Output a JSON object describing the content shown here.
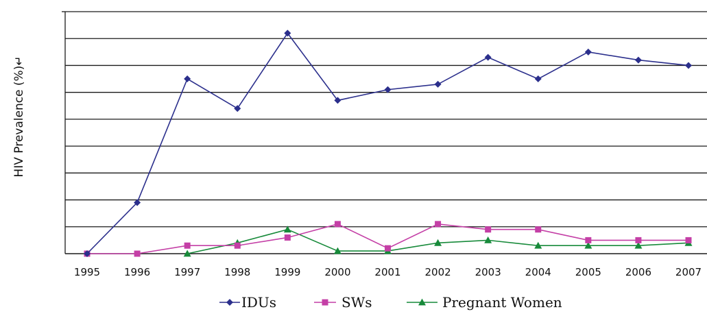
{
  "chart_data": {
    "type": "line",
    "title": "",
    "xlabel": "",
    "ylabel": "HIV Prevalence (%)↵",
    "x": [
      "1995",
      "1996",
      "1997",
      "1998",
      "1999",
      "2000",
      "2001",
      "2002",
      "2003",
      "2004",
      "2005",
      "2006",
      "2007"
    ],
    "ylim": [
      0,
      90
    ],
    "y_tick_labels_shown": false,
    "grid": true,
    "legend_position": "bottom",
    "series": [
      {
        "name": "IDUs",
        "color": "#2B2F8C",
        "marker": "diamond",
        "values": [
          0,
          19,
          65,
          54,
          82,
          57,
          61,
          63,
          73,
          65,
          75,
          72,
          70
        ]
      },
      {
        "name": "SWs",
        "color": "#C43FA6",
        "marker": "square",
        "values": [
          0,
          0,
          3,
          3,
          6,
          11,
          2,
          11,
          9,
          9,
          5,
          5,
          5
        ]
      },
      {
        "name": "Pregnant Women",
        "color": "#178A3A",
        "marker": "triangle",
        "values": [
          null,
          null,
          0,
          4,
          9,
          1,
          1,
          4,
          5,
          3,
          3,
          3,
          4
        ]
      }
    ]
  }
}
